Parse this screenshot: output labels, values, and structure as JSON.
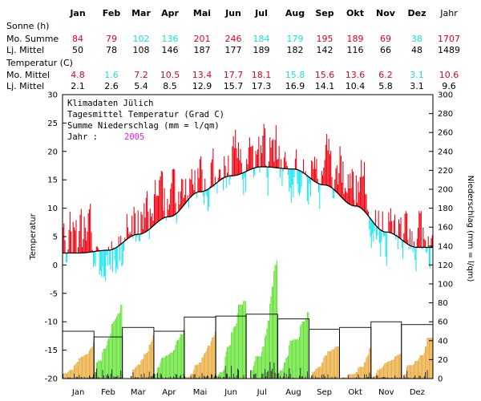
{
  "months": [
    "Jan",
    "Feb",
    "Mar",
    "Apr",
    "Mai",
    "Jun",
    "Jul",
    "Aug",
    "Sep",
    "Okt",
    "Nov",
    "Dez"
  ],
  "year_label": "Jahr",
  "table": {
    "sonne_header": "Sonne (h)",
    "temp_header": "Temperatur (C)",
    "rows": [
      {
        "label": "Mo. Summe",
        "values": [
          "84",
          "79",
          "102",
          "136",
          "201",
          "246",
          "184",
          "179",
          "195",
          "189",
          "69",
          "38"
        ],
        "year": "1707",
        "colors": [
          "#e8001c",
          "#e8001c",
          "#19e0e0",
          "#19e0e0",
          "#e8001c",
          "#e8001c",
          "#19e0e0",
          "#19e0e0",
          "#e8001c",
          "#e8001c",
          "#e8001c",
          "#19e0e0"
        ],
        "year_color": "#e8001c"
      },
      {
        "label": "Lj. Mittel",
        "values": [
          "50",
          "78",
          "108",
          "146",
          "187",
          "177",
          "189",
          "182",
          "142",
          "116",
          "66",
          "48"
        ],
        "year": "1489",
        "colors": [
          "#000",
          "#000",
          "#000",
          "#000",
          "#000",
          "#000",
          "#000",
          "#000",
          "#000",
          "#000",
          "#000",
          "#000"
        ],
        "year_color": "#000"
      },
      {
        "label": "Mo. Mittel",
        "values": [
          "4.8",
          "1.6",
          "7.2",
          "10.5",
          "13.4",
          "17.7",
          "18.1",
          "15.8",
          "15.6",
          "13.6",
          "6.2",
          "3.1"
        ],
        "year": "10.6",
        "colors": [
          "#e8001c",
          "#19e0e0",
          "#e8001c",
          "#e8001c",
          "#e8001c",
          "#e8001c",
          "#e8001c",
          "#19e0e0",
          "#e8001c",
          "#e8001c",
          "#e8001c",
          "#19e0e0"
        ],
        "year_color": "#e8001c"
      },
      {
        "label": "Lj. Mittel",
        "values": [
          "2.1",
          "2.6",
          "5.4",
          "8.5",
          "12.9",
          "15.7",
          "17.3",
          "16.9",
          "14.1",
          "10.4",
          "5.8",
          "3.1"
        ],
        "year": "9.6",
        "colors": [
          "#000",
          "#000",
          "#000",
          "#000",
          "#000",
          "#000",
          "#000",
          "#000",
          "#000",
          "#000",
          "#000",
          "#000"
        ],
        "year_color": "#000"
      }
    ]
  },
  "legend": {
    "line1": "Klimadaten Jülich",
    "line2": "Tagesmittel Temperatur (Grad C)",
    "line3": "Summe Niederschlag (mm = l/qm)",
    "year_label": "Jahr :",
    "year_value": "2005"
  },
  "colors": {
    "warm": "#f0000f",
    "cold": "#19e8f0",
    "precip_dry": "#e8a733",
    "precip_wet": "#5be02a",
    "year_text": "#e020e0"
  },
  "chart_data": {
    "type": "line",
    "left_axis": {
      "label": "Temperatur",
      "min": -20,
      "max": 30,
      "ticks": [
        -20,
        -15,
        -10,
        -5,
        0,
        5,
        10,
        15,
        20,
        25,
        30
      ]
    },
    "right_axis": {
      "label": "Niederschlag (mm = l/qm)",
      "min": 0,
      "max": 300,
      "ticks": [
        0,
        20,
        40,
        60,
        80,
        100,
        120,
        140,
        160,
        180,
        200,
        220,
        240,
        260,
        280,
        300
      ]
    },
    "x_ticks": [
      "Jan",
      "Feb",
      "Mar",
      "Apr",
      "Mai",
      "Jun",
      "Jul",
      "Aug",
      "Sep",
      "Okt",
      "Nov",
      "Dez"
    ],
    "days_in_month": [
      31,
      28,
      31,
      30,
      31,
      30,
      31,
      31,
      30,
      31,
      30,
      31
    ],
    "longterm_mean_temp_monthly": [
      2.1,
      2.6,
      5.4,
      8.5,
      12.9,
      15.7,
      17.3,
      16.9,
      14.1,
      10.4,
      5.8,
      3.1
    ],
    "daily_temp_monthly_mean": [
      4.8,
      1.6,
      7.2,
      10.5,
      13.4,
      17.7,
      18.1,
      15.8,
      15.6,
      13.6,
      6.2,
      3.1
    ],
    "monthly_precip_sum": [
      38,
      78,
      46,
      52,
      50,
      82,
      125,
      70,
      34,
      33,
      26,
      43
    ],
    "monthly_precip_longterm": [
      50,
      44,
      54,
      50,
      65,
      66,
      68,
      63,
      52,
      54,
      60,
      57
    ]
  }
}
